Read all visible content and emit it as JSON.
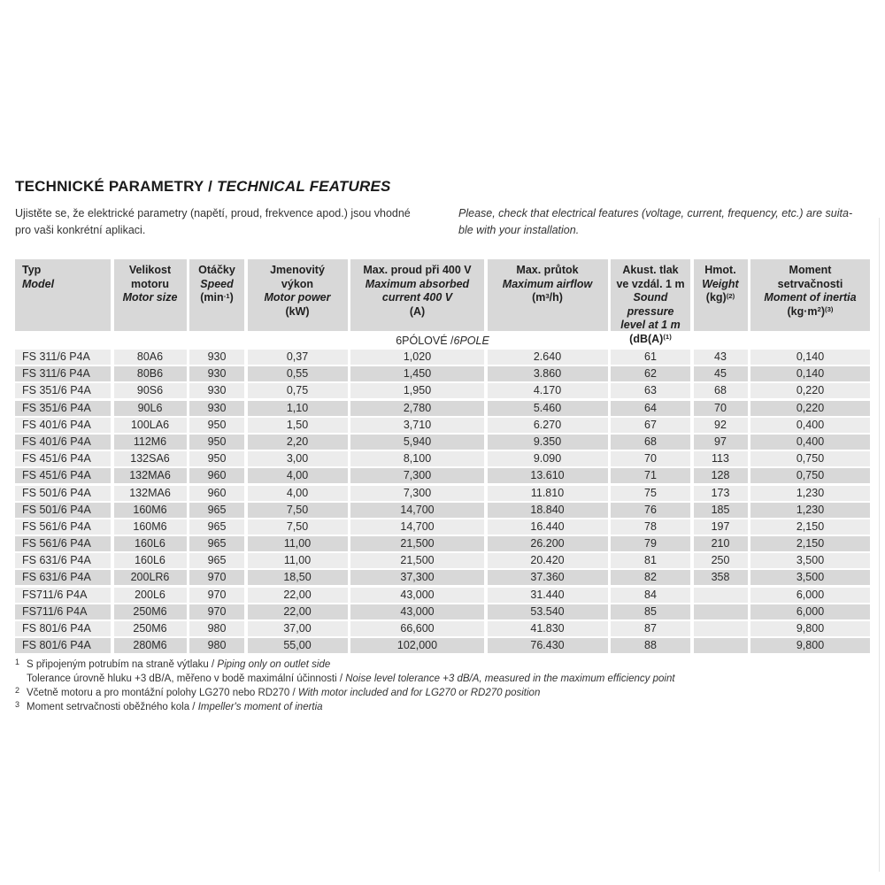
{
  "page": {
    "title": {
      "cz": "TECHNICKÉ PARAMETRY / ",
      "en": "TECHNICAL FEATURES"
    },
    "intro_cz": "Ujistěte se, že elektrické parametry (napětí, proud, frekvence apod.) jsou vhodné\npro vaši konkrétní aplikaci.",
    "intro_en": "Please, check that electrical features (voltage, current, frequency, etc.) are suita-\nble with your installation."
  },
  "table": {
    "section": {
      "cz": "6PÓLOVÉ / ",
      "en": "6POLE"
    },
    "columns": [
      {
        "align": "left",
        "lines": [
          {
            "italic": false,
            "parts": [
              {
                "t": "Typ"
              }
            ]
          },
          {
            "italic": true,
            "parts": [
              {
                "t": "Model"
              }
            ]
          }
        ]
      },
      {
        "align": "center",
        "lines": [
          {
            "italic": false,
            "parts": [
              {
                "t": "Velikost"
              }
            ]
          },
          {
            "italic": false,
            "parts": [
              {
                "t": "motoru"
              }
            ]
          },
          {
            "italic": true,
            "parts": [
              {
                "t": "Motor size"
              }
            ]
          }
        ]
      },
      {
        "align": "center",
        "lines": [
          {
            "italic": false,
            "parts": [
              {
                "t": "Otáčky"
              }
            ]
          },
          {
            "italic": true,
            "parts": [
              {
                "t": "Speed"
              }
            ]
          },
          {
            "italic": false,
            "parts": [
              {
                "t": "(min"
              },
              {
                "t": "-1",
                "sup": true
              },
              {
                "t": ")"
              }
            ]
          }
        ]
      },
      {
        "align": "center",
        "lines": [
          {
            "italic": false,
            "parts": [
              {
                "t": "Jmenovitý"
              }
            ]
          },
          {
            "italic": false,
            "parts": [
              {
                "t": "výkon"
              }
            ]
          },
          {
            "italic": true,
            "parts": [
              {
                "t": "Motor power"
              }
            ]
          },
          {
            "italic": false,
            "parts": [
              {
                "t": "(kW)"
              }
            ]
          }
        ]
      },
      {
        "align": "center",
        "lines": [
          {
            "italic": false,
            "parts": [
              {
                "t": "Max. proud při 400 V"
              }
            ]
          },
          {
            "italic": true,
            "parts": [
              {
                "t": "Maximum absorbed"
              }
            ]
          },
          {
            "italic": true,
            "parts": [
              {
                "t": "current 400 V"
              }
            ]
          },
          {
            "italic": false,
            "parts": [
              {
                "t": "(A)"
              }
            ]
          }
        ]
      },
      {
        "align": "center",
        "lines": [
          {
            "italic": false,
            "parts": [
              {
                "t": "Max. průtok"
              }
            ]
          },
          {
            "italic": true,
            "parts": [
              {
                "t": "Maximum airflow"
              }
            ]
          },
          {
            "italic": false,
            "parts": [
              {
                "t": "(m"
              },
              {
                "t": "3",
                "sup": true
              },
              {
                "t": "/h)"
              }
            ]
          }
        ]
      },
      {
        "align": "center",
        "lines": [
          {
            "italic": false,
            "parts": [
              {
                "t": "Akust. tlak"
              }
            ]
          },
          {
            "italic": false,
            "parts": [
              {
                "t": "ve vzdál. 1 m"
              }
            ]
          },
          {
            "italic": true,
            "parts": [
              {
                "t": "Sound pressure"
              }
            ]
          },
          {
            "italic": true,
            "parts": [
              {
                "t": "level at 1 m"
              }
            ]
          },
          {
            "italic": false,
            "parts": [
              {
                "t": "(dB(A)"
              },
              {
                "t": "(1)",
                "sup": true
              }
            ]
          }
        ]
      },
      {
        "align": "center",
        "lines": [
          {
            "italic": false,
            "parts": [
              {
                "t": "Hmot."
              }
            ]
          },
          {
            "italic": true,
            "parts": [
              {
                "t": "Weight"
              }
            ]
          },
          {
            "italic": false,
            "parts": [
              {
                "t": "(kg)"
              },
              {
                "t": "(2)",
                "sup": true
              }
            ]
          }
        ]
      },
      {
        "align": "center",
        "lines": [
          {
            "italic": false,
            "parts": [
              {
                "t": "Moment"
              }
            ]
          },
          {
            "italic": false,
            "parts": [
              {
                "t": "setrvačnosti"
              }
            ]
          },
          {
            "italic": true,
            "parts": [
              {
                "t": "Moment of inertia"
              }
            ]
          },
          {
            "italic": false,
            "parts": [
              {
                "t": "(kg·m"
              },
              {
                "t": "2",
                "sup": true
              },
              {
                "t": ")"
              },
              {
                "t": "(3)",
                "sup": true
              }
            ]
          }
        ]
      }
    ],
    "rows": [
      [
        "FS 311/6 P4A",
        "80A6",
        "930",
        "0,37",
        "1,020",
        "2.640",
        "61",
        "43",
        "0,140"
      ],
      [
        "FS 311/6 P4A",
        "80B6",
        "930",
        "0,55",
        "1,450",
        "3.860",
        "62",
        "45",
        "0,140"
      ],
      [
        "FS 351/6 P4A",
        "90S6",
        "930",
        "0,75",
        "1,950",
        "4.170",
        "63",
        "68",
        "0,220"
      ],
      [
        "FS 351/6 P4A",
        "90L6",
        "930",
        "1,10",
        "2,780",
        "5.460",
        "64",
        "70",
        "0,220"
      ],
      [
        "FS 401/6 P4A",
        "100LA6",
        "950",
        "1,50",
        "3,710",
        "6.270",
        "67",
        "92",
        "0,400"
      ],
      [
        "FS 401/6 P4A",
        "112M6",
        "950",
        "2,20",
        "5,940",
        "9.350",
        "68",
        "97",
        "0,400"
      ],
      [
        "FS 451/6 P4A",
        "132SA6",
        "950",
        "3,00",
        "8,100",
        "9.090",
        "70",
        "113",
        "0,750"
      ],
      [
        "FS 451/6 P4A",
        "132MA6",
        "960",
        "4,00",
        "7,300",
        "13.610",
        "71",
        "128",
        "0,750"
      ],
      [
        "FS 501/6 P4A",
        "132MA6",
        "960",
        "4,00",
        "7,300",
        "11.810",
        "75",
        "173",
        "1,230"
      ],
      [
        "FS 501/6 P4A",
        "160M6",
        "965",
        "7,50",
        "14,700",
        "18.840",
        "76",
        "185",
        "1,230"
      ],
      [
        "FS 561/6 P4A",
        "160M6",
        "965",
        "7,50",
        "14,700",
        "16.440",
        "78",
        "197",
        "2,150"
      ],
      [
        "FS 561/6 P4A",
        "160L6",
        "965",
        "11,00",
        "21,500",
        "26.200",
        "79",
        "210",
        "2,150"
      ],
      [
        "FS 631/6 P4A",
        "160L6",
        "965",
        "11,00",
        "21,500",
        "20.420",
        "81",
        "250",
        "3,500"
      ],
      [
        "FS 631/6 P4A",
        "200LR6",
        "970",
        "18,50",
        "37,300",
        "37.360",
        "82",
        "358",
        "3,500"
      ],
      [
        "FS711/6 P4A",
        "200L6",
        "970",
        "22,00",
        "43,000",
        "31.440",
        "84",
        "",
        "6,000"
      ],
      [
        "FS711/6 P4A",
        "250M6",
        "970",
        "22,00",
        "43,000",
        "53.540",
        "85",
        "",
        "6,000"
      ],
      [
        "FS 801/6 P4A",
        "250M6",
        "980",
        "37,00",
        "66,600",
        "41.830",
        "87",
        "",
        "9,800"
      ],
      [
        "FS 801/6 P4A",
        "280M6",
        "980",
        "55,00",
        "102,000",
        "76.430",
        "88",
        "",
        "9,800"
      ]
    ]
  },
  "footnotes": [
    {
      "marker": "1",
      "lines": [
        {
          "cz": "S připojeným potrubím na straně výtlaku",
          "en": "Piping only on outlet side"
        },
        {
          "cz": "Tolerance úrovně hluku +3 dB/A, měřeno v bodě maximální účinnosti",
          "en": "Noise level tolerance +3 dB/A, measured in the maximum efficiency point"
        }
      ]
    },
    {
      "marker": "2",
      "lines": [
        {
          "cz": "Včetně motoru a pro montážní polohy LG270 nebo RD270",
          "en": "With motor included and for LG270 or RD270 position"
        }
      ]
    },
    {
      "marker": "3",
      "lines": [
        {
          "cz": "Moment setrvačnosti oběžného kola",
          "en": "Impeller's moment of inertia"
        }
      ]
    }
  ],
  "colors": {
    "header_bg": "#d8d8d8",
    "row_light": "#ececec",
    "row_dark": "#d8d8d8",
    "text": "#222222"
  }
}
